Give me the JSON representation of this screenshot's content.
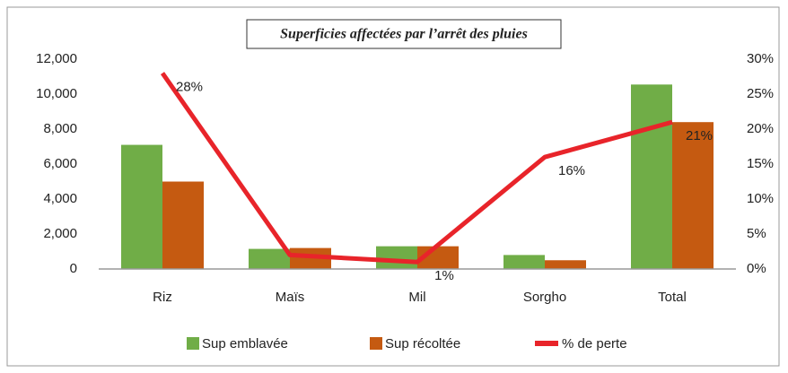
{
  "chart_data": {
    "type": "bar_line",
    "title": "Superficies affectées par l’arrêt des pluies",
    "categories": [
      "Riz",
      "Maïs",
      "Mil",
      "Sorgho",
      "Total"
    ],
    "series": [
      {
        "name": "Sup emblavée",
        "color": "#70ad47",
        "type": "bar",
        "values": [
          7100,
          1150,
          1300,
          800,
          10550
        ]
      },
      {
        "name": "Sup récoltée",
        "color": "#c55a11",
        "type": "bar",
        "values": [
          5000,
          1200,
          1300,
          500,
          8400
        ]
      },
      {
        "name": "% de perte",
        "color": "#e8242a",
        "type": "line",
        "axis": "y2",
        "values": [
          28,
          2,
          1,
          16,
          21
        ],
        "value_labels": [
          "28%",
          null,
          "1%",
          "16%",
          "21%"
        ]
      }
    ],
    "ylim": [
      0,
      12000
    ],
    "yticks": [
      0,
      {
        "value": 2000,
        "label": "2,000"
      },
      {
        "value": 4000,
        "label": "4,000"
      },
      {
        "value": 6000,
        "label": "6,000"
      },
      {
        "value": 8000,
        "label": "8,000"
      },
      {
        "value": 10000,
        "label": "10,000"
      },
      {
        "value": 12000,
        "label": "12,000"
      }
    ],
    "y2lim": [
      0,
      30
    ],
    "y2ticks": [
      {
        "value": 0,
        "label": "0%"
      },
      {
        "value": 5,
        "label": "5%"
      },
      {
        "value": 10,
        "label": "10%"
      },
      {
        "value": 15,
        "label": "15%"
      },
      {
        "value": 20,
        "label": "20%"
      },
      {
        "value": 25,
        "label": "25%"
      },
      {
        "value": 30,
        "label": "30%"
      }
    ],
    "grid": false,
    "legend": "bottom"
  }
}
